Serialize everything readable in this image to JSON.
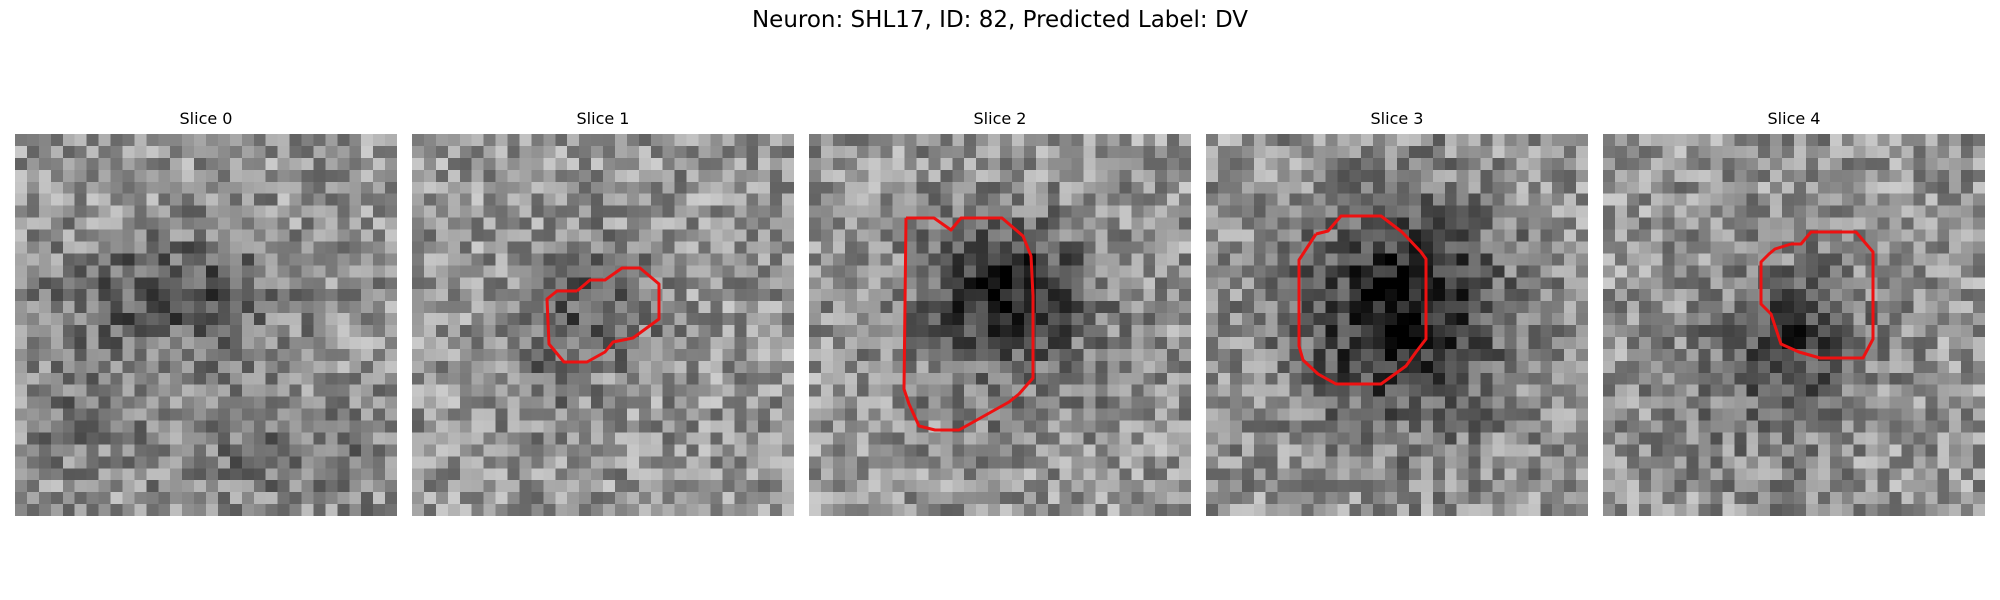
{
  "figure": {
    "title": "Neuron: SHL17, ID: 82, Predicted Label: DV"
  },
  "panels": [
    {
      "title": "Slice 0",
      "has_contour": false
    },
    {
      "title": "Slice 1",
      "has_contour": true
    },
    {
      "title": "Slice 2",
      "has_contour": true
    },
    {
      "title": "Slice 3",
      "has_contour": true
    },
    {
      "title": "Slice 4",
      "has_contour": true
    }
  ],
  "colors": {
    "contour": "#ee1111",
    "background": "#ffffff"
  }
}
